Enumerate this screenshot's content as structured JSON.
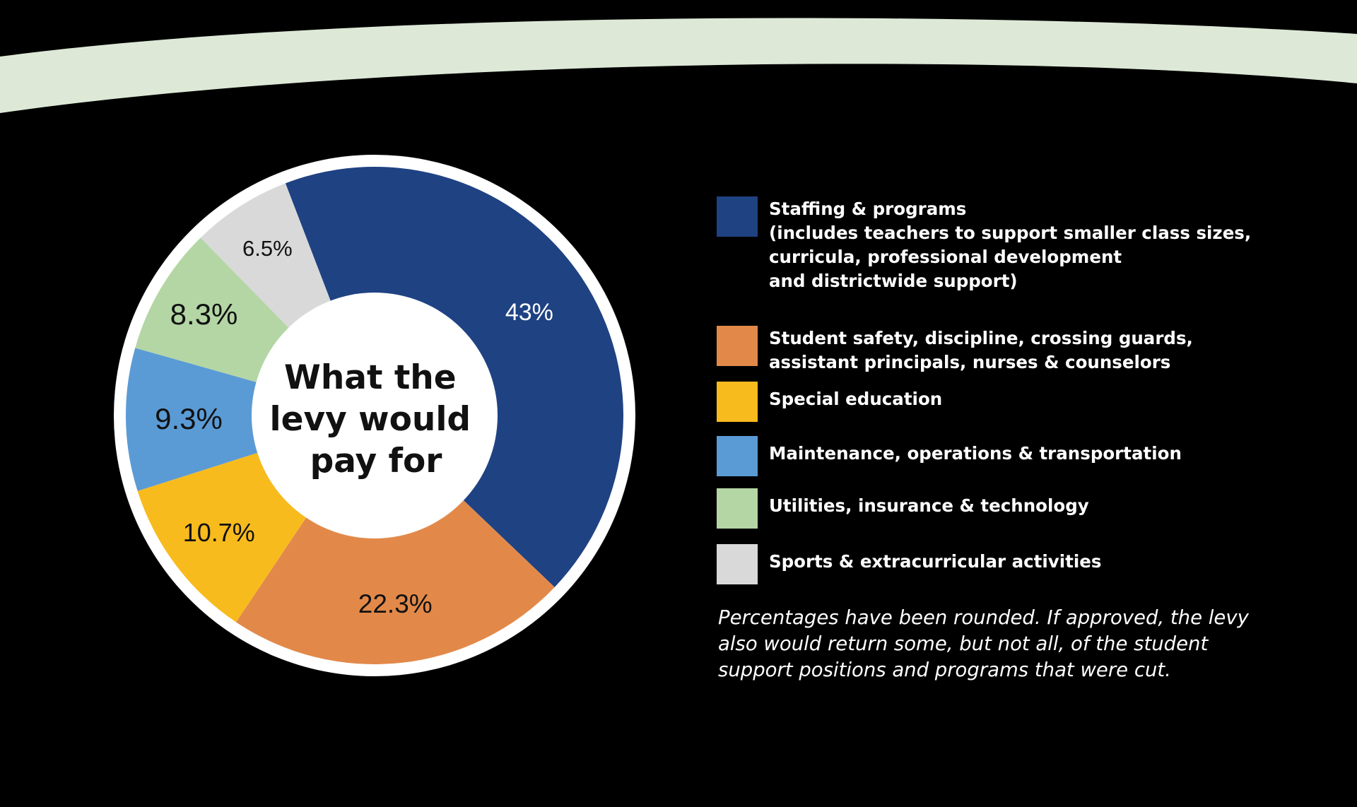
{
  "chart_data": {
    "type": "pie",
    "title": "What the levy would pay for",
    "categories": [
      "Staffing & programs\n(includes teachers to support smaller class sizes,\ncurricula, professional development\nand districtwide support)",
      "Student safety, discipline, crossing guards,\nassistant principals, nurses & counselors",
      "Special education",
      "Maintenance, operations & transportation",
      "Utilities, insurance & technology",
      "Sports & extracurricular activities"
    ],
    "values": [
      43,
      22.3,
      10.7,
      9.3,
      8.3,
      6.5
    ],
    "value_labels": [
      "43%",
      "22.3%",
      "10.7%",
      "9.3%",
      "8.3%",
      "6.5%"
    ],
    "colors": [
      "#1F4283",
      "#E2894A",
      "#F8BB1E",
      "#5B9BD5",
      "#B4D6A5",
      "#D9D9D9"
    ],
    "legend_position": "right",
    "footnote": "Percentages have been rounded. If approved, the levy also would return some, but not all, of the student support positions and programs that were cut."
  },
  "colors": {
    "background": "#000000",
    "arc": "#DDE9D6",
    "ring": "#FFFFFF"
  }
}
